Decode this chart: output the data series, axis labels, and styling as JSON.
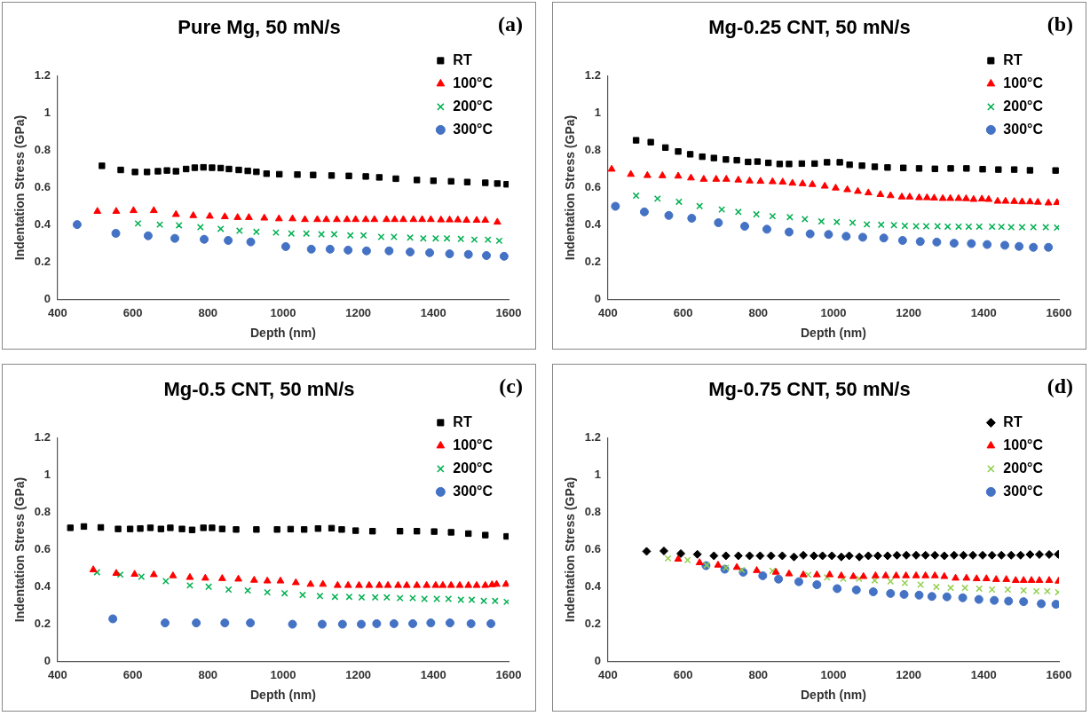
{
  "chart_data": [
    {
      "type": "scatter",
      "title": "Pure Mg, 50 mN/s",
      "xlabel": "Depth (nm)",
      "ylabel": "Indentation Stress (GPa)",
      "xlim": [
        400,
        1600
      ],
      "xticks": [
        400,
        600,
        800,
        1000,
        1200,
        1400,
        1600
      ],
      "ylim": [
        0,
        1.2
      ],
      "yticks": [
        0,
        0.2,
        0.4,
        0.6,
        0.8,
        1,
        1.2
      ],
      "legend": "top right",
      "annotations": [
        "(a)"
      ],
      "series": [
        {
          "name": "RT",
          "color": "#000000",
          "marker": "square",
          "x": [
            518,
            568,
            606,
            638,
            667,
            691,
            715,
            742,
            765,
            788,
            811,
            834,
            856,
            882,
            906,
            929,
            956,
            990,
            1038,
            1080,
            1129,
            1175,
            1220,
            1256,
            1300,
            1356,
            1400,
            1447,
            1490,
            1538,
            1570,
            1595
          ],
          "values": [
            0.717,
            0.695,
            0.684,
            0.684,
            0.688,
            0.692,
            0.688,
            0.7,
            0.707,
            0.709,
            0.707,
            0.705,
            0.7,
            0.695,
            0.69,
            0.685,
            0.675,
            0.672,
            0.67,
            0.668,
            0.665,
            0.663,
            0.66,
            0.655,
            0.648,
            0.641,
            0.637,
            0.634,
            0.63,
            0.626,
            0.622,
            0.618
          ]
        },
        {
          "name": "100°C",
          "color": "#ff0000",
          "marker": "triangle",
          "x": [
            506,
            556,
            602,
            656,
            715,
            761,
            805,
            845,
            879,
            909,
            950,
            989,
            1025,
            1058,
            1091,
            1115,
            1143,
            1170,
            1193,
            1220,
            1243,
            1275,
            1297,
            1320,
            1347,
            1370,
            1393,
            1420,
            1443,
            1465,
            1488,
            1515,
            1538,
            1570
          ],
          "values": [
            0.473,
            0.473,
            0.477,
            0.477,
            0.456,
            0.45,
            0.447,
            0.444,
            0.44,
            0.44,
            0.437,
            0.433,
            0.433,
            0.429,
            0.429,
            0.429,
            0.429,
            0.429,
            0.429,
            0.429,
            0.429,
            0.429,
            0.429,
            0.429,
            0.429,
            0.429,
            0.429,
            0.427,
            0.427,
            0.427,
            0.425,
            0.425,
            0.425,
            0.415
          ]
        },
        {
          "name": "200°C",
          "color": "#00b050",
          "marker": "cross",
          "x": [
            614,
            672,
            723,
            780,
            834,
            884,
            929,
            981,
            1022,
            1062,
            1102,
            1136,
            1179,
            1214,
            1261,
            1295,
            1338,
            1373,
            1406,
            1436,
            1473,
            1509,
            1545,
            1575
          ],
          "values": [
            0.408,
            0.402,
            0.398,
            0.388,
            0.379,
            0.369,
            0.363,
            0.359,
            0.354,
            0.354,
            0.35,
            0.35,
            0.344,
            0.344,
            0.336,
            0.336,
            0.332,
            0.328,
            0.328,
            0.328,
            0.325,
            0.321,
            0.321,
            0.315
          ]
        },
        {
          "name": "300°C",
          "color": "#4472c4",
          "marker": "circle",
          "x": [
            452,
            555,
            641,
            712,
            790,
            854,
            914,
            1007,
            1075,
            1125,
            1173,
            1222,
            1282,
            1338,
            1390,
            1443,
            1493,
            1541,
            1588
          ],
          "values": [
            0.402,
            0.355,
            0.342,
            0.328,
            0.323,
            0.317,
            0.309,
            0.284,
            0.27,
            0.27,
            0.265,
            0.261,
            0.261,
            0.255,
            0.251,
            0.245,
            0.242,
            0.236,
            0.232
          ]
        }
      ]
    },
    {
      "type": "scatter",
      "title": "Mg-0.25 CNT, 50 mN/s",
      "xlabel": "Depth (nm)",
      "ylabel": "Indentation Stress (GPa)",
      "xlim": [
        400,
        1600
      ],
      "xticks": [
        400,
        600,
        800,
        1000,
        1200,
        1400,
        1600
      ],
      "ylim": [
        0,
        1.2
      ],
      "yticks": [
        0,
        0.2,
        0.4,
        0.6,
        0.8,
        1,
        1.2
      ],
      "legend": "top right",
      "annotations": [
        "(b)"
      ],
      "series": [
        {
          "name": "RT",
          "color": "#000000",
          "marker": "square",
          "x": [
            475,
            514,
            553,
            587,
            619,
            651,
            682,
            714,
            743,
            773,
            798,
            827,
            857,
            882,
            916,
            950,
            983,
            1017,
            1043,
            1076,
            1110,
            1144,
            1186,
            1228,
            1270,
            1312,
            1354,
            1397,
            1439,
            1481,
            1523,
            1591
          ],
          "values": [
            0.854,
            0.844,
            0.815,
            0.794,
            0.779,
            0.766,
            0.759,
            0.751,
            0.747,
            0.738,
            0.74,
            0.733,
            0.727,
            0.727,
            0.729,
            0.729,
            0.736,
            0.736,
            0.723,
            0.718,
            0.712,
            0.708,
            0.706,
            0.703,
            0.701,
            0.703,
            0.703,
            0.699,
            0.697,
            0.697,
            0.693,
            0.692
          ]
        },
        {
          "name": "100°C",
          "color": "#ff0000",
          "marker": "triangle",
          "x": [
            410,
            461,
            505,
            545,
            587,
            621,
            655,
            688,
            715,
            747,
            777,
            806,
            838,
            865,
            891,
            918,
            944,
            977,
            1006,
            1037,
            1065,
            1093,
            1125,
            1152,
            1182,
            1203,
            1228,
            1249,
            1268,
            1291,
            1311,
            1333,
            1353,
            1373,
            1395,
            1413,
            1437,
            1458,
            1481,
            1502,
            1523,
            1544,
            1572,
            1595
          ],
          "values": [
            0.699,
            0.671,
            0.665,
            0.664,
            0.662,
            0.652,
            0.645,
            0.645,
            0.645,
            0.641,
            0.636,
            0.634,
            0.632,
            0.63,
            0.624,
            0.621,
            0.617,
            0.608,
            0.598,
            0.589,
            0.58,
            0.572,
            0.563,
            0.557,
            0.55,
            0.55,
            0.546,
            0.546,
            0.544,
            0.542,
            0.542,
            0.542,
            0.541,
            0.537,
            0.539,
            0.537,
            0.527,
            0.527,
            0.526,
            0.524,
            0.524,
            0.522,
            0.518,
            0.52
          ]
        },
        {
          "name": "200°C",
          "color": "#00b050",
          "marker": "cross",
          "x": [
            475,
            532,
            589,
            644,
            703,
            747,
            795,
            838,
            884,
            924,
            968,
            1009,
            1051,
            1089,
            1127,
            1161,
            1190,
            1220,
            1247,
            1277,
            1304,
            1333,
            1360,
            1388,
            1422,
            1447,
            1473,
            1502,
            1532,
            1565,
            1595
          ],
          "values": [
            0.557,
            0.541,
            0.524,
            0.501,
            0.483,
            0.47,
            0.457,
            0.447,
            0.442,
            0.431,
            0.419,
            0.416,
            0.412,
            0.403,
            0.401,
            0.399,
            0.395,
            0.393,
            0.393,
            0.393,
            0.391,
            0.391,
            0.391,
            0.391,
            0.391,
            0.39,
            0.388,
            0.388,
            0.388,
            0.388,
            0.386
          ]
        },
        {
          "name": "300°C",
          "color": "#4472c4",
          "marker": "circle",
          "x": [
            420,
            497,
            562,
            623,
            694,
            764,
            823,
            882,
            938,
            987,
            1034,
            1078,
            1134,
            1184,
            1231,
            1275,
            1321,
            1367,
            1409,
            1456,
            1494,
            1532,
            1572
          ],
          "values": [
            0.5,
            0.47,
            0.451,
            0.436,
            0.412,
            0.393,
            0.377,
            0.362,
            0.352,
            0.349,
            0.339,
            0.334,
            0.33,
            0.317,
            0.311,
            0.308,
            0.302,
            0.3,
            0.295,
            0.291,
            0.285,
            0.28,
            0.28
          ]
        }
      ]
    },
    {
      "type": "scatter",
      "title": "Mg-0.5 CNT, 50 mN/s",
      "xlabel": "Depth (nm)",
      "ylabel": "Indentation Stress (GPa)",
      "xlim": [
        400,
        1600
      ],
      "xticks": [
        400,
        600,
        800,
        1000,
        1200,
        1400,
        1600
      ],
      "ylim": [
        0,
        1.2
      ],
      "yticks": [
        0,
        0.2,
        0.4,
        0.6,
        0.8,
        1,
        1.2
      ],
      "legend": "top right",
      "annotations": [
        "(c)"
      ],
      "series": [
        {
          "name": "RT",
          "color": "#000000",
          "marker": "square",
          "x": [
            434,
            470,
            515,
            561,
            593,
            620,
            647,
            675,
            700,
            731,
            758,
            788,
            811,
            838,
            875,
            929,
            984,
            1020,
            1056,
            1093,
            1129,
            1156,
            1193,
            1238,
            1311,
            1356,
            1402,
            1447,
            1493,
            1538,
            1595
          ],
          "values": [
            0.717,
            0.724,
            0.719,
            0.711,
            0.711,
            0.713,
            0.717,
            0.711,
            0.717,
            0.711,
            0.706,
            0.717,
            0.717,
            0.711,
            0.708,
            0.708,
            0.708,
            0.71,
            0.708,
            0.713,
            0.715,
            0.708,
            0.702,
            0.699,
            0.699,
            0.699,
            0.697,
            0.693,
            0.686,
            0.678,
            0.671
          ]
        },
        {
          "name": "100°C",
          "color": "#ff0000",
          "marker": "triangle",
          "x": [
            495,
            556,
            605,
            656,
            707,
            752,
            793,
            838,
            881,
            923,
            958,
            993,
            1034,
            1073,
            1106,
            1145,
            1173,
            1202,
            1229,
            1256,
            1279,
            1306,
            1329,
            1356,
            1382,
            1406,
            1425,
            1447,
            1470,
            1493,
            1515,
            1538,
            1556,
            1568,
            1593
          ],
          "values": [
            0.492,
            0.473,
            0.468,
            0.466,
            0.46,
            0.451,
            0.447,
            0.445,
            0.442,
            0.436,
            0.432,
            0.432,
            0.423,
            0.414,
            0.414,
            0.408,
            0.408,
            0.408,
            0.408,
            0.408,
            0.408,
            0.408,
            0.408,
            0.408,
            0.408,
            0.408,
            0.408,
            0.408,
            0.408,
            0.408,
            0.408,
            0.408,
            0.412,
            0.414,
            0.414
          ]
        },
        {
          "name": "200°C",
          "color": "#00b050",
          "marker": "cross",
          "x": [
            505,
            567,
            623,
            688,
            752,
            802,
            855,
            906,
            958,
            1004,
            1052,
            1098,
            1138,
            1176,
            1209,
            1245,
            1276,
            1311,
            1345,
            1376,
            1409,
            1440,
            1473,
            1502,
            1534,
            1564,
            1595
          ],
          "values": [
            0.479,
            0.466,
            0.455,
            0.431,
            0.408,
            0.401,
            0.386,
            0.381,
            0.371,
            0.366,
            0.357,
            0.351,
            0.347,
            0.347,
            0.344,
            0.344,
            0.344,
            0.34,
            0.34,
            0.336,
            0.336,
            0.336,
            0.331,
            0.331,
            0.325,
            0.325,
            0.32
          ]
        },
        {
          "name": "300°C",
          "color": "#4472c4",
          "marker": "circle",
          "x": [
            547,
            686,
            769,
            845,
            913,
            1025,
            1104,
            1158,
            1208,
            1249,
            1295,
            1345,
            1393,
            1444,
            1500,
            1553
          ],
          "values": [
            0.229,
            0.207,
            0.207,
            0.207,
            0.207,
            0.2,
            0.2,
            0.2,
            0.2,
            0.203,
            0.203,
            0.203,
            0.207,
            0.207,
            0.203,
            0.203
          ]
        }
      ]
    },
    {
      "type": "scatter",
      "title": "Mg-0.75 CNT, 50 mN/s",
      "xlabel": "Depth (nm)",
      "ylabel": "Indentation Stress (GPa)",
      "xlim": [
        400,
        1600
      ],
      "xticks": [
        400,
        600,
        800,
        1000,
        1200,
        1400,
        1600
      ],
      "ylim": [
        0,
        1.2
      ],
      "yticks": [
        0,
        0.2,
        0.4,
        0.6,
        0.8,
        1,
        1.2
      ],
      "legend": "top right",
      "annotations": [
        "(d)"
      ],
      "series": [
        {
          "name": "RT",
          "color": "#000000",
          "marker": "diamond",
          "x": [
            503,
            549,
            594,
            638,
            682,
            714,
            747,
            777,
            805,
            834,
            864,
            895,
            920,
            948,
            971,
            996,
            1021,
            1042,
            1069,
            1093,
            1118,
            1144,
            1169,
            1194,
            1220,
            1245,
            1270,
            1295,
            1321,
            1346,
            1371,
            1397,
            1422,
            1447,
            1473,
            1498,
            1523,
            1548,
            1574,
            1598
          ],
          "values": [
            0.591,
            0.593,
            0.579,
            0.575,
            0.567,
            0.567,
            0.567,
            0.567,
            0.567,
            0.567,
            0.567,
            0.561,
            0.57,
            0.567,
            0.567,
            0.567,
            0.561,
            0.567,
            0.561,
            0.567,
            0.567,
            0.567,
            0.57,
            0.57,
            0.57,
            0.57,
            0.57,
            0.567,
            0.57,
            0.57,
            0.57,
            0.57,
            0.57,
            0.57,
            0.57,
            0.57,
            0.574,
            0.574,
            0.574,
            0.575
          ]
        },
        {
          "name": "100°C",
          "color": "#ff0000",
          "marker": "triangle",
          "x": [
            587,
            644,
            693,
            743,
            796,
            847,
            882,
            920,
            956,
            990,
            1021,
            1053,
            1080,
            1112,
            1139,
            1167,
            1193,
            1220,
            1245,
            1270,
            1295,
            1325,
            1354,
            1381,
            1407,
            1433,
            1460,
            1485,
            1506,
            1527,
            1548,
            1574,
            1599
          ],
          "values": [
            0.549,
            0.53,
            0.517,
            0.505,
            0.488,
            0.479,
            0.47,
            0.465,
            0.465,
            0.465,
            0.46,
            0.456,
            0.456,
            0.46,
            0.46,
            0.46,
            0.46,
            0.46,
            0.46,
            0.46,
            0.456,
            0.447,
            0.447,
            0.444,
            0.444,
            0.44,
            0.44,
            0.435,
            0.435,
            0.435,
            0.435,
            0.435,
            0.431
          ]
        },
        {
          "name": "200°C",
          "color": "#92d050",
          "marker": "cross",
          "x": [
            560,
            612,
            663,
            714,
            756,
            798,
            838,
            882,
            933,
            983,
            1026,
            1068,
            1110,
            1152,
            1190,
            1232,
            1274,
            1312,
            1350,
            1388,
            1422,
            1464,
            1506,
            1540,
            1569,
            1598
          ],
          "values": [
            0.553,
            0.544,
            0.517,
            0.503,
            0.491,
            null,
            0.486,
            null,
            0.465,
            0.451,
            0.444,
            0.444,
            0.435,
            0.43,
            0.421,
            0.412,
            0.4,
            0.395,
            0.395,
            0.391,
            0.386,
            0.386,
            0.381,
            0.377,
            0.377,
            0.372
          ]
        },
        {
          "name": "300°C",
          "color": "#4472c4",
          "marker": "circle",
          "x": [
            661,
            711,
            760,
            812,
            854,
            908,
            956,
            1010,
            1061,
            1106,
            1152,
            1188,
            1228,
            1262,
            1302,
            1344,
            1387,
            1428,
            1466,
            1506,
            1553,
            1592
          ],
          "values": [
            0.514,
            0.495,
            0.479,
            0.46,
            0.442,
            0.428,
            0.412,
            0.391,
            0.384,
            0.374,
            0.365,
            0.36,
            0.356,
            0.349,
            0.347,
            0.342,
            0.333,
            0.328,
            0.324,
            0.321,
            0.31,
            0.307
          ]
        }
      ]
    }
  ]
}
